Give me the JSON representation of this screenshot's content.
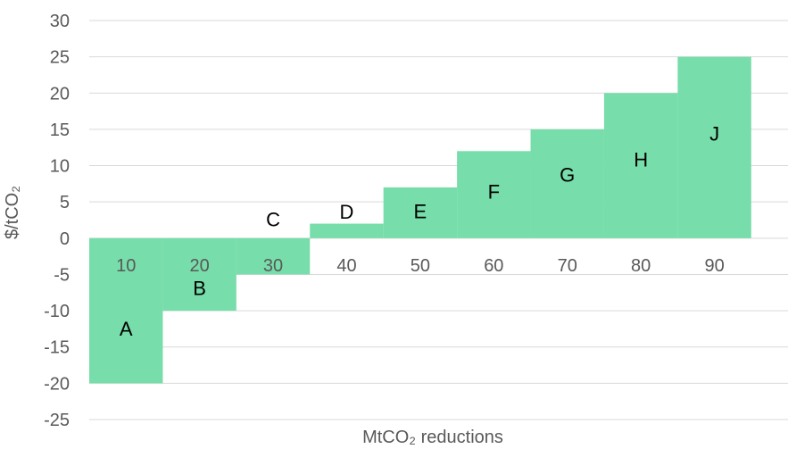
{
  "chart_data": {
    "type": "bar",
    "title": "",
    "xlabel": "MtCO₂ reductions",
    "ylabel": "$/tCO₂",
    "ylim": [
      -25,
      30
    ],
    "xlim": [
      0,
      95
    ],
    "grid": true,
    "y_ticks": [
      30,
      25,
      20,
      15,
      10,
      5,
      0,
      -5,
      -10,
      -15,
      -20,
      -25
    ],
    "x_ticks": [
      10,
      20,
      30,
      40,
      50,
      60,
      70,
      80,
      90
    ],
    "bar_color": "#77DDAA",
    "categories": [
      "A",
      "B",
      "C",
      "D",
      "E",
      "F",
      "G",
      "H",
      "J"
    ],
    "x_start": [
      0,
      10,
      20,
      30,
      40,
      50,
      60,
      70,
      80
    ],
    "x_end": [
      10,
      20,
      30,
      40,
      50,
      60,
      70,
      80,
      90
    ],
    "values": [
      -20,
      -10,
      -5,
      2,
      7,
      12,
      15,
      20,
      25
    ]
  }
}
